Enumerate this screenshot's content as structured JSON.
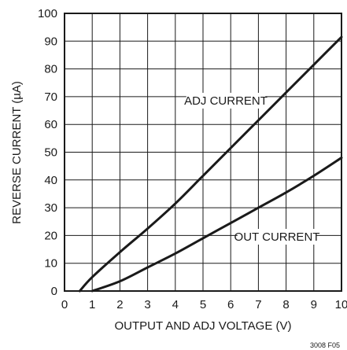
{
  "chart_data": {
    "type": "line",
    "title": "",
    "xlabel": "OUTPUT AND ADJ VOLTAGE (V)",
    "ylabel": "REVERSE CURRENT (µA)",
    "xlim": [
      0,
      10
    ],
    "ylim": [
      0,
      100
    ],
    "x_ticks": [
      "0",
      "1",
      "2",
      "3",
      "4",
      "5",
      "6",
      "7",
      "8",
      "9",
      "10"
    ],
    "y_ticks": [
      "0",
      "10",
      "20",
      "30",
      "40",
      "50",
      "60",
      "70",
      "80",
      "90",
      "100"
    ],
    "grid": true,
    "series": [
      {
        "name": "ADJ CURRENT",
        "x": [
          0.55,
          1.0,
          2.0,
          3.0,
          4.0,
          5.0,
          6.0,
          7.0,
          8.0,
          9.0,
          10.0
        ],
        "y": [
          0,
          5,
          14,
          22.5,
          31.5,
          41.5,
          51.5,
          61.5,
          71.5,
          81.5,
          91.5
        ]
      },
      {
        "name": "OUT CURRENT",
        "x": [
          1.0,
          2.0,
          3.0,
          4.0,
          5.0,
          6.0,
          7.0,
          8.0,
          9.0,
          10.0
        ],
        "y": [
          0,
          3.5,
          8.5,
          13.5,
          19,
          24.5,
          30,
          35.5,
          41.5,
          48
        ]
      }
    ],
    "annotations": [
      {
        "text": "ADJ CURRENT"
      },
      {
        "text": "OUT CURRENT"
      }
    ],
    "figure_code": "3008 F05"
  }
}
